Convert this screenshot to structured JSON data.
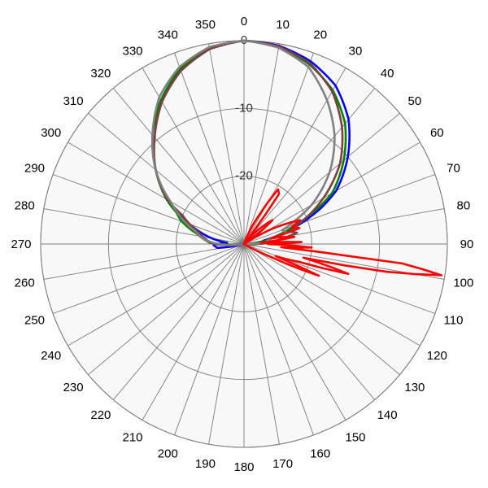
{
  "chart_data": {
    "type": "polar",
    "title": "",
    "rings": [
      {
        "value": -20,
        "label": "-20"
      },
      {
        "value": -10,
        "label": "-10"
      },
      {
        "value": 0,
        "label": "0"
      }
    ],
    "r_range": [
      -30,
      0
    ],
    "angle_labels": [
      "0",
      "10",
      "20",
      "30",
      "40",
      "50",
      "60",
      "70",
      "80",
      "90",
      "100",
      "110",
      "120",
      "130",
      "140",
      "150",
      "160",
      "170",
      "180",
      "190",
      "200",
      "210",
      "220",
      "230",
      "240",
      "250",
      "260",
      "270",
      "280",
      "290",
      "300",
      "310",
      "320",
      "330",
      "340",
      "350"
    ],
    "angle_units": "degrees",
    "grid": true,
    "series": [
      {
        "color": "#0000ff",
        "points": [
          [
            0,
            0
          ],
          [
            10,
            -0.3
          ],
          [
            20,
            -1.3
          ],
          [
            30,
            -3.0
          ],
          [
            40,
            -6.0
          ],
          [
            50,
            -10.0
          ],
          [
            60,
            -14.3
          ],
          [
            65,
            -17.5
          ],
          [
            70,
            -21.0
          ],
          [
            75,
            -24.5
          ],
          [
            80,
            -27.0
          ],
          [
            85,
            -27.8
          ],
          [
            90,
            -28.3
          ],
          [
            95,
            -30
          ],
          [
            180,
            -30
          ],
          [
            255,
            -30
          ],
          [
            262,
            -26.0
          ],
          [
            268,
            -25.5
          ],
          [
            274,
            -27.5
          ],
          [
            280,
            -25.2
          ],
          [
            290,
            -21.5
          ],
          [
            300,
            -17.0
          ],
          [
            310,
            -13.0
          ],
          [
            320,
            -9.0
          ],
          [
            330,
            -5.5
          ],
          [
            340,
            -2.5
          ],
          [
            350,
            -0.6
          ],
          [
            360,
            0
          ]
        ]
      },
      {
        "color": "#008000",
        "points": [
          [
            0,
            0
          ],
          [
            10,
            -0.4
          ],
          [
            20,
            -1.8
          ],
          [
            30,
            -3.8
          ],
          [
            40,
            -6.8
          ],
          [
            50,
            -10.8
          ],
          [
            60,
            -15.0
          ],
          [
            65,
            -18.5
          ],
          [
            70,
            -22.0
          ],
          [
            75,
            -24.5
          ],
          [
            80,
            -26.5
          ],
          [
            85,
            -28.0
          ],
          [
            90,
            -30
          ],
          [
            180,
            -30
          ],
          [
            265,
            -30
          ],
          [
            272,
            -25.0
          ],
          [
            282,
            -23.0
          ],
          [
            290,
            -20.2
          ],
          [
            295,
            -19.0
          ],
          [
            300,
            -16.8
          ],
          [
            310,
            -13.0
          ],
          [
            320,
            -9.0
          ],
          [
            330,
            -5.5
          ],
          [
            340,
            -2.5
          ],
          [
            350,
            -0.6
          ],
          [
            360,
            0
          ]
        ]
      },
      {
        "color": "#7f3f3f",
        "points": [
          [
            0,
            0
          ],
          [
            10,
            -0.4
          ],
          [
            20,
            -1.6
          ],
          [
            30,
            -4.0
          ],
          [
            40,
            -7.5
          ],
          [
            50,
            -11.5
          ],
          [
            60,
            -16.5
          ],
          [
            67,
            -20.0
          ],
          [
            70,
            -21.5
          ],
          [
            75,
            -23.0
          ],
          [
            78,
            -22.0
          ],
          [
            82,
            -24.5
          ],
          [
            86,
            -25.5
          ],
          [
            90,
            -28.0
          ],
          [
            95,
            -30
          ],
          [
            180,
            -30
          ],
          [
            262,
            -30
          ],
          [
            270,
            -25.5
          ],
          [
            285,
            -23.0
          ],
          [
            295,
            -20.0
          ],
          [
            300,
            -17.0
          ],
          [
            310,
            -13.0
          ],
          [
            320,
            -9.5
          ],
          [
            330,
            -5.8
          ],
          [
            340,
            -2.8
          ],
          [
            350,
            -0.8
          ],
          [
            360,
            0
          ]
        ]
      },
      {
        "color": "#808080",
        "points": [
          [
            0,
            0
          ],
          [
            10,
            -0.6
          ],
          [
            20,
            -2.2
          ],
          [
            30,
            -5.5
          ],
          [
            40,
            -9.2
          ],
          [
            50,
            -13.5
          ],
          [
            60,
            -18.5
          ],
          [
            65,
            -21.5
          ],
          [
            70,
            -24.0
          ],
          [
            75,
            -23.5
          ],
          [
            78,
            -25.5
          ],
          [
            82,
            -26.5
          ],
          [
            86,
            -27.0
          ],
          [
            90,
            -30
          ],
          [
            180,
            -30
          ],
          [
            260,
            -30
          ],
          [
            268,
            -27.0
          ],
          [
            275,
            -24.5
          ],
          [
            285,
            -22.5
          ],
          [
            292,
            -20.2
          ],
          [
            300,
            -17.5
          ],
          [
            305,
            -15.2
          ],
          [
            310,
            -13.0
          ],
          [
            320,
            -9.0
          ],
          [
            330,
            -5.0
          ],
          [
            340,
            -2.2
          ],
          [
            350,
            -0.5
          ],
          [
            360,
            0
          ]
        ]
      },
      {
        "color": "#ff0000",
        "points": [
          [
            0,
            -30
          ],
          [
            20,
            -30
          ],
          [
            28,
            -25.0
          ],
          [
            32,
            -20.5
          ],
          [
            35,
            -21.0
          ],
          [
            37,
            -28.0
          ],
          [
            40,
            -30
          ],
          [
            45,
            -27.0
          ],
          [
            50,
            -24.5
          ],
          [
            55,
            -28.5
          ],
          [
            57,
            -30
          ],
          [
            62,
            -25.0
          ],
          [
            67,
            -21.0
          ],
          [
            70,
            -22.5
          ],
          [
            74,
            -21.5
          ],
          [
            76,
            -24.0
          ],
          [
            78,
            -26.0
          ],
          [
            80,
            -24.0
          ],
          [
            82,
            -22.5
          ],
          [
            84,
            -25.5
          ],
          [
            86,
            -27.5
          ],
          [
            87,
            -24.0
          ],
          [
            88,
            -21.5
          ],
          [
            90,
            -26.5
          ],
          [
            91,
            -25.0
          ],
          [
            93,
            -20.0
          ],
          [
            95,
            -24.5
          ],
          [
            96,
            -19.0
          ],
          [
            97,
            -6.5
          ],
          [
            99,
            -0.5
          ],
          [
            101,
            -8.5
          ],
          [
            103,
            -21.0
          ],
          [
            106,
            -14.0
          ],
          [
            108,
            -21.5
          ],
          [
            111,
            -25.0
          ],
          [
            113,
            -18.0
          ],
          [
            116,
            -26.0
          ],
          [
            120,
            -30
          ],
          [
            360,
            -30
          ]
        ]
      }
    ]
  }
}
